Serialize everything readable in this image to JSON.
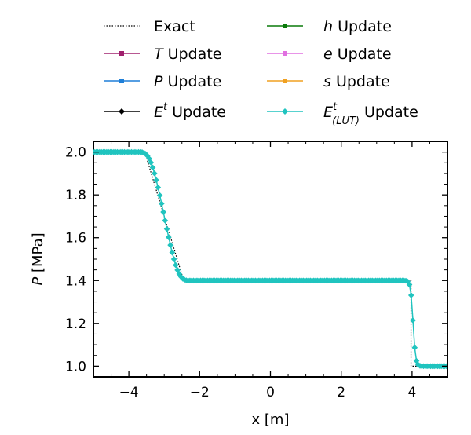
{
  "legend": [
    {
      "id": "exact",
      "label_italic": "",
      "label_sup": "",
      "label_sub": "",
      "label_rest": "Exact",
      "color": "#000000",
      "style": "dotted",
      "marker": "none"
    },
    {
      "id": "T",
      "label_italic": "T",
      "label_sup": "",
      "label_sub": "",
      "label_rest": " Update",
      "color": "#a0206e",
      "style": "solid",
      "marker": "square"
    },
    {
      "id": "P",
      "label_italic": "P",
      "label_sup": "",
      "label_sub": "",
      "label_rest": " Update",
      "color": "#1f7fd8",
      "style": "solid",
      "marker": "square"
    },
    {
      "id": "Et",
      "label_italic": "E",
      "label_sup": "t",
      "label_sub": "",
      "label_rest": " Update",
      "color": "#000000",
      "style": "solid",
      "marker": "diamond"
    },
    {
      "id": "h",
      "label_italic": "h",
      "label_sup": "",
      "label_sub": "",
      "label_rest": " Update",
      "color": "#0a7a0a",
      "style": "solid",
      "marker": "square"
    },
    {
      "id": "e",
      "label_italic": "e",
      "label_sup": "",
      "label_sub": "",
      "label_rest": " Update",
      "color": "#e070e0",
      "style": "solid",
      "marker": "square"
    },
    {
      "id": "s",
      "label_italic": "s",
      "label_sup": "",
      "label_sub": "",
      "label_rest": " Update",
      "color": "#f0a020",
      "style": "solid",
      "marker": "square"
    },
    {
      "id": "Elut",
      "label_italic": "E",
      "label_sup": "t",
      "label_sub": "(LUT)",
      "label_rest": " Update",
      "color": "#20c4bf",
      "style": "solid",
      "marker": "diamond"
    }
  ],
  "chart_data": {
    "type": "line",
    "xlabel": "x [m]",
    "ylabel_italic": "P",
    "ylabel_rest": " [MPa]",
    "xlim": [
      -5,
      5
    ],
    "ylim": [
      0.95,
      2.05
    ],
    "xticks": [
      -4,
      -2,
      0,
      2,
      4
    ],
    "xtick_labels": [
      "−4",
      "−2",
      "0",
      "2",
      "4"
    ],
    "yticks": [
      1.0,
      1.2,
      1.4,
      1.6,
      1.8,
      2.0
    ],
    "ytick_labels": [
      "1.0",
      "1.2",
      "1.4",
      "1.6",
      "1.8",
      "2.0"
    ],
    "grid": false,
    "legend_placement": "above plot, two columns",
    "exact": {
      "x": [
        -5,
        -3.55,
        -2.45,
        3.97,
        3.97,
        5
      ],
      "y": [
        2.0,
        2.0,
        1.4,
        1.4,
        1.0,
        1.0
      ]
    },
    "series_model": {
      "n_points": 200,
      "left_state": 2.0,
      "plateau": 1.4,
      "right_state": 1.0,
      "rarefaction_start": -3.55,
      "rarefaction_end": -2.45,
      "rarefaction_smoothing": 0.14,
      "shock_position": 4.03,
      "shock_width": 0.035
    },
    "visible_series_color": "#20c4bf"
  }
}
